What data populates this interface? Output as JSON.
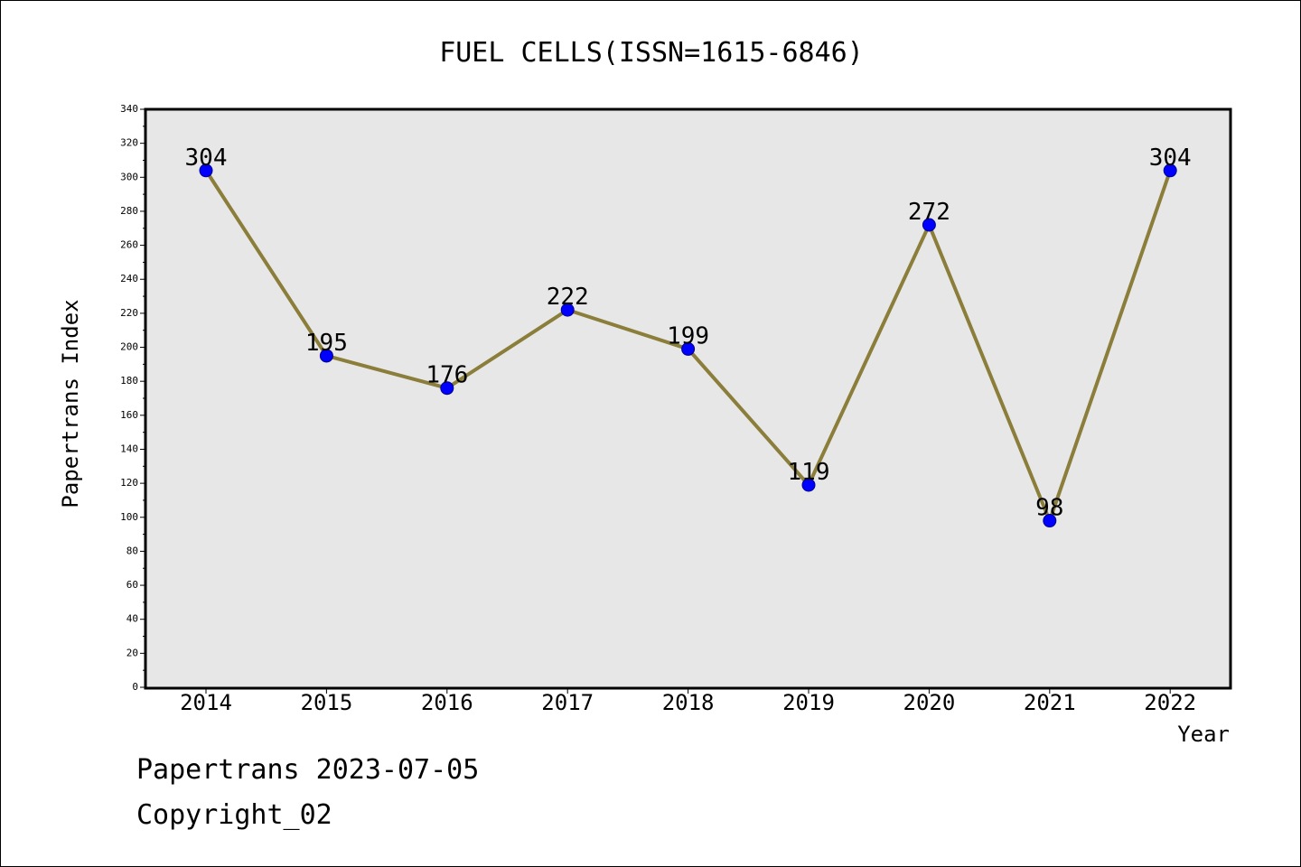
{
  "footer": {
    "date_line": "Papertrans 2023-07-05",
    "copyright_line": "Copyright_02"
  },
  "chart_data": {
    "type": "line",
    "title": "FUEL CELLS(ISSN=1615-6846)",
    "xlabel": "Year",
    "ylabel": "Papertrans Index",
    "categories": [
      "2014",
      "2015",
      "2016",
      "2017",
      "2018",
      "2019",
      "2020",
      "2021",
      "2022"
    ],
    "series": [
      {
        "values": [
          304,
          195,
          176,
          222,
          199,
          119,
          272,
          98,
          304
        ]
      }
    ],
    "data_labels": [
      "304",
      "195",
      "176",
      "222",
      "199",
      "119",
      "272",
      "98",
      "304"
    ],
    "ylim": [
      0,
      340
    ],
    "yticks": [
      0,
      20,
      40,
      60,
      80,
      100,
      120,
      140,
      160,
      180,
      200,
      220,
      240,
      260,
      280,
      300,
      320,
      340
    ],
    "grid": false,
    "legend": "none",
    "colors": {
      "plot_background": "#e7e7e7",
      "line": "#8b7d3a",
      "marker_fill": "#0000ff",
      "marker_stroke": "#00008b",
      "frame": "#000000"
    }
  }
}
